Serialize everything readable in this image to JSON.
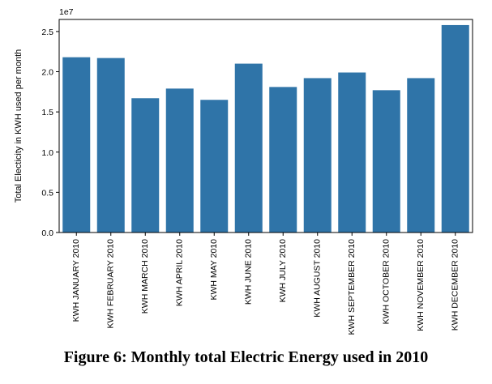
{
  "chart_data": {
    "type": "bar",
    "title": "",
    "xlabel": "",
    "ylabel": "Total Electicity in KWH used per month",
    "offset_label": "1e7",
    "y_scale": 10000000,
    "ylim": [
      0,
      2.65
    ],
    "yticks": [
      0.0,
      0.5,
      1.0,
      1.5,
      2.0,
      2.5
    ],
    "ytick_labels": [
      "0.0",
      "0.5",
      "1.0",
      "1.5",
      "2.0",
      "2.5"
    ],
    "categories": [
      "KWH JANUARY 2010",
      "KWH FEBRUARY 2010",
      "KWH MARCH 2010",
      "KWH APRIL 2010",
      "KWH MAY 2010",
      "KWH JUNE 2010",
      "KWH JULY 2010",
      "KWH AUGUST 2010",
      "KWH SEPTEMBER 2010",
      "KWH OCTOBER 2010",
      "KWH NOVEMBER 2010",
      "KWH DECEMBER 2010"
    ],
    "values": [
      2.18,
      2.17,
      1.67,
      1.79,
      1.65,
      2.1,
      1.81,
      1.92,
      1.99,
      1.77,
      1.92,
      2.58
    ],
    "bar_color": "#2f74a8",
    "grid": false
  },
  "caption": "Figure 6: Monthly total Electric Energy used in 2010"
}
